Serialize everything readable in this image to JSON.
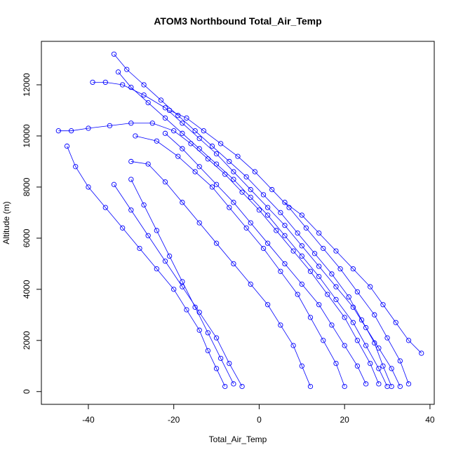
{
  "chart_data": {
    "type": "scatter",
    "title": "ATOM3 Northbound Total_Air_Temp",
    "xlabel": "Total_Air_Temp",
    "ylabel": "Altitude (m)",
    "xlim": [
      -51,
      41
    ],
    "ylim": [
      -500,
      13700
    ],
    "x_ticks": [
      -40,
      -20,
      0,
      20,
      40
    ],
    "y_ticks": [
      0,
      2000,
      4000,
      6000,
      8000,
      10000,
      12000
    ],
    "grid": false,
    "legend": "none",
    "marker": "open-circle",
    "connected": true,
    "color": "#0000ff",
    "series": [
      {
        "x": [
          30,
          28,
          25,
          22,
          18,
          14,
          10,
          6,
          2,
          -2,
          -6,
          -10,
          -14,
          -18,
          -22,
          -26,
          -30,
          -33
        ],
        "y": [
          200,
          900,
          1800,
          2700,
          3600,
          4500,
          5300,
          6100,
          6900,
          7600,
          8300,
          8900,
          9500,
          10100,
          10700,
          11300,
          11900,
          12500
        ]
      },
      {
        "x": [
          31,
          29,
          27,
          24,
          21,
          17,
          13,
          9,
          5,
          1,
          -3,
          -7,
          -11,
          -15,
          -19,
          -23,
          -27,
          -31,
          -34
        ],
        "y": [
          200,
          1000,
          1900,
          2800,
          3700,
          4600,
          5400,
          6200,
          7000,
          7700,
          8400,
          9000,
          9600,
          10200,
          10800,
          11400,
          12000,
          12600,
          13200
        ]
      },
      {
        "x": [
          28,
          26,
          23,
          20,
          16,
          12,
          8,
          4,
          0,
          -4,
          -8,
          -12,
          -16,
          -20,
          -25,
          -30,
          -35,
          -40,
          -44,
          -47
        ],
        "y": [
          300,
          1100,
          2000,
          2900,
          3800,
          4700,
          5500,
          6300,
          7100,
          7800,
          8500,
          9100,
          9700,
          10200,
          10500,
          10500,
          10400,
          10300,
          10200,
          10200
        ]
      },
      {
        "x": [
          35,
          33,
          30,
          27,
          23,
          19,
          15,
          11,
          7,
          3,
          -1,
          -5,
          -9,
          -13,
          -17,
          -21
        ],
        "y": [
          300,
          1200,
          2100,
          3000,
          3900,
          4800,
          5600,
          6400,
          7200,
          7900,
          8600,
          9200,
          9700,
          10200,
          10700,
          11000
        ]
      },
      {
        "x": [
          12,
          10,
          8,
          5,
          2,
          -2,
          -6,
          -10,
          -14,
          -18,
          -22,
          -26,
          -30
        ],
        "y": [
          200,
          1000,
          1800,
          2600,
          3400,
          4200,
          5000,
          5800,
          6600,
          7400,
          8200,
          8900,
          9000
        ]
      },
      {
        "x": [
          -8,
          -10,
          -12,
          -14,
          -17,
          -20,
          -24,
          -28,
          -32,
          -36,
          -40,
          -43,
          -45
        ],
        "y": [
          200,
          900,
          1600,
          2400,
          3200,
          4000,
          4800,
          5600,
          6400,
          7200,
          8000,
          8800,
          9600
        ]
      },
      {
        "x": [
          20,
          18,
          15,
          12,
          9,
          5,
          1,
          -3,
          -7,
          -11,
          -15,
          -19,
          -24,
          -29
        ],
        "y": [
          200,
          1100,
          2000,
          2900,
          3800,
          4700,
          5600,
          6400,
          7200,
          8000,
          8600,
          9200,
          9800,
          10000
        ]
      },
      {
        "x": [
          33,
          31,
          28,
          25,
          22,
          18,
          14,
          10,
          6,
          2,
          -2,
          -6,
          -10,
          -14,
          -18,
          -22,
          -27,
          -32,
          -36,
          -39
        ],
        "y": [
          200,
          900,
          1700,
          2500,
          3300,
          4100,
          4900,
          5700,
          6500,
          7200,
          7900,
          8600,
          9300,
          9900,
          10500,
          11100,
          11600,
          12000,
          12100,
          12100
        ]
      },
      {
        "x": [
          -6,
          -9,
          -12,
          -15,
          -18,
          -21,
          -24,
          -27,
          -30
        ],
        "y": [
          300,
          1300,
          2300,
          3300,
          4300,
          5300,
          6300,
          7300,
          8300
        ]
      },
      {
        "x": [
          38,
          35,
          32,
          29,
          26,
          22,
          18,
          14,
          10,
          6
        ],
        "y": [
          1500,
          2000,
          2700,
          3400,
          4100,
          4800,
          5500,
          6200,
          6900,
          7400
        ]
      },
      {
        "x": [
          25,
          23,
          20,
          17,
          14,
          10,
          6,
          2,
          -2,
          -6,
          -10,
          -14,
          -18,
          -22
        ],
        "y": [
          300,
          1000,
          1800,
          2600,
          3400,
          4200,
          5000,
          5800,
          6600,
          7400,
          8100,
          8800,
          9500,
          10100
        ]
      },
      {
        "x": [
          -4,
          -7,
          -10,
          -14,
          -18,
          -22,
          -26,
          -30,
          -34
        ],
        "y": [
          200,
          1100,
          2100,
          3100,
          4100,
          5100,
          6100,
          7100,
          8100
        ]
      }
    ]
  }
}
